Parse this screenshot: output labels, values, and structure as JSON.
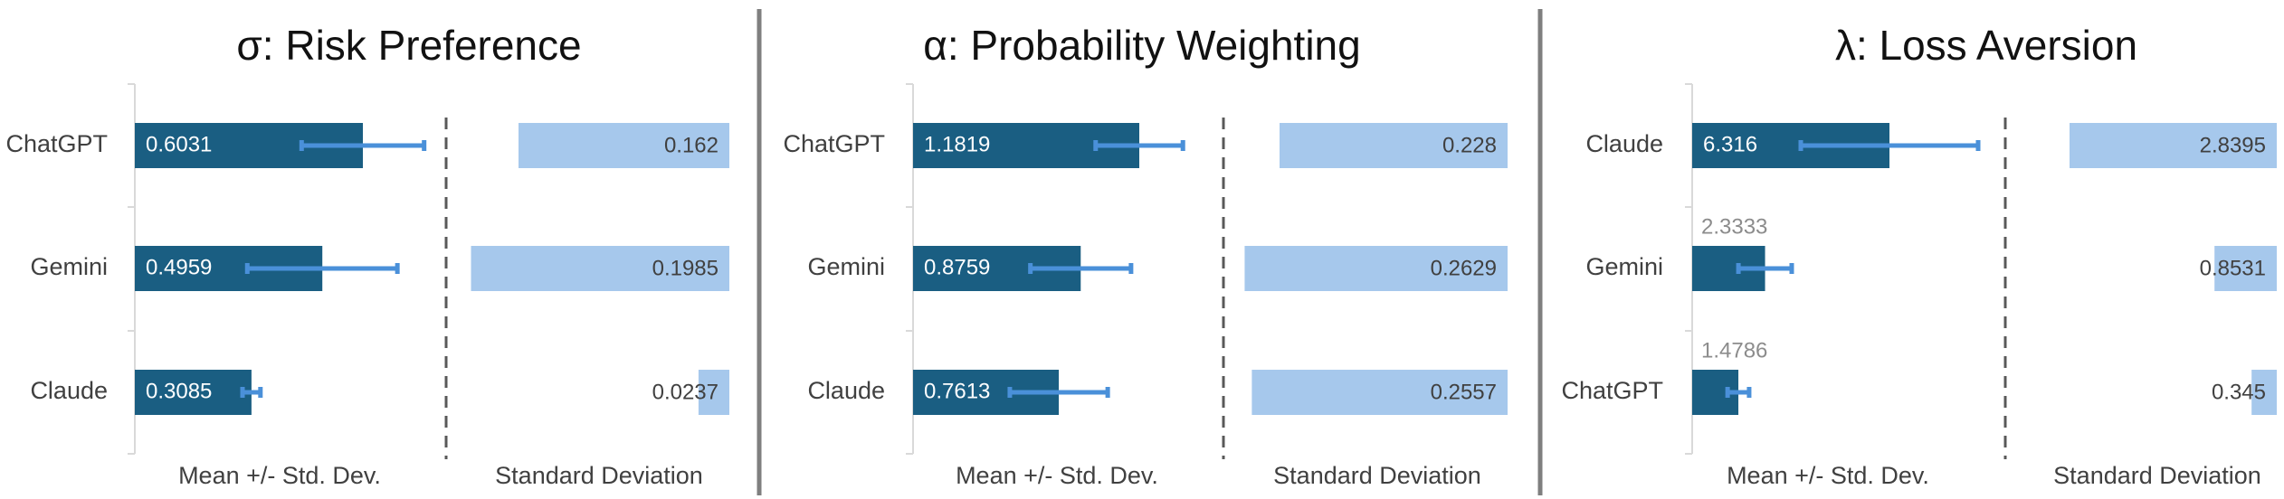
{
  "colors": {
    "mean_bar": "#1a5e82",
    "error_bar": "#4a90d9",
    "sd_bar": "#a6c8ec",
    "axis_line": "#d9d9d9",
    "dashed_divider": "#595959",
    "panel_separator": "#7f7f7f",
    "above_label": "#8c8c8c"
  },
  "chart_data": [
    {
      "type": "bar",
      "title": "σ: Risk Preference",
      "categories": [
        "ChatGPT",
        "Gemini",
        "Claude"
      ],
      "series": [
        {
          "name": "Mean +/- Std. Dev.",
          "values": [
            0.6031,
            0.4959,
            0.3085
          ],
          "error": [
            0.162,
            0.1985,
            0.0237
          ]
        },
        {
          "name": "Standard Deviation",
          "values": [
            0.162,
            0.1985,
            0.0237
          ]
        }
      ],
      "left_label": "Mean +/- Std. Dev.",
      "right_label": "Standard Deviation",
      "mean_label_position": [
        "inside",
        "inside",
        "inside"
      ]
    },
    {
      "type": "bar",
      "title": "α: Probability Weighting",
      "categories": [
        "ChatGPT",
        "Gemini",
        "Claude"
      ],
      "series": [
        {
          "name": "Mean +/- Std. Dev.",
          "values": [
            1.1819,
            0.8759,
            0.7613
          ],
          "error": [
            0.228,
            0.2629,
            0.2557
          ]
        },
        {
          "name": "Standard Deviation",
          "values": [
            0.228,
            0.2629,
            0.2557
          ]
        }
      ],
      "left_label": "Mean +/- Std. Dev.",
      "right_label": "Standard Deviation",
      "mean_label_position": [
        "inside",
        "inside",
        "inside"
      ]
    },
    {
      "type": "bar",
      "title": "λ: Loss Aversion",
      "categories": [
        "Claude",
        "Gemini",
        "ChatGPT"
      ],
      "series": [
        {
          "name": "Mean +/- Std. Dev.",
          "values": [
            6.316,
            2.3333,
            1.4786
          ],
          "error": [
            2.8395,
            0.8531,
            0.345
          ]
        },
        {
          "name": "Standard Deviation",
          "values": [
            2.8395,
            0.8531,
            0.345
          ]
        }
      ],
      "left_label": "Mean +/- Std. Dev.",
      "right_label": "Standard Deviation",
      "mean_label_position": [
        "inside",
        "above",
        "above"
      ]
    }
  ]
}
